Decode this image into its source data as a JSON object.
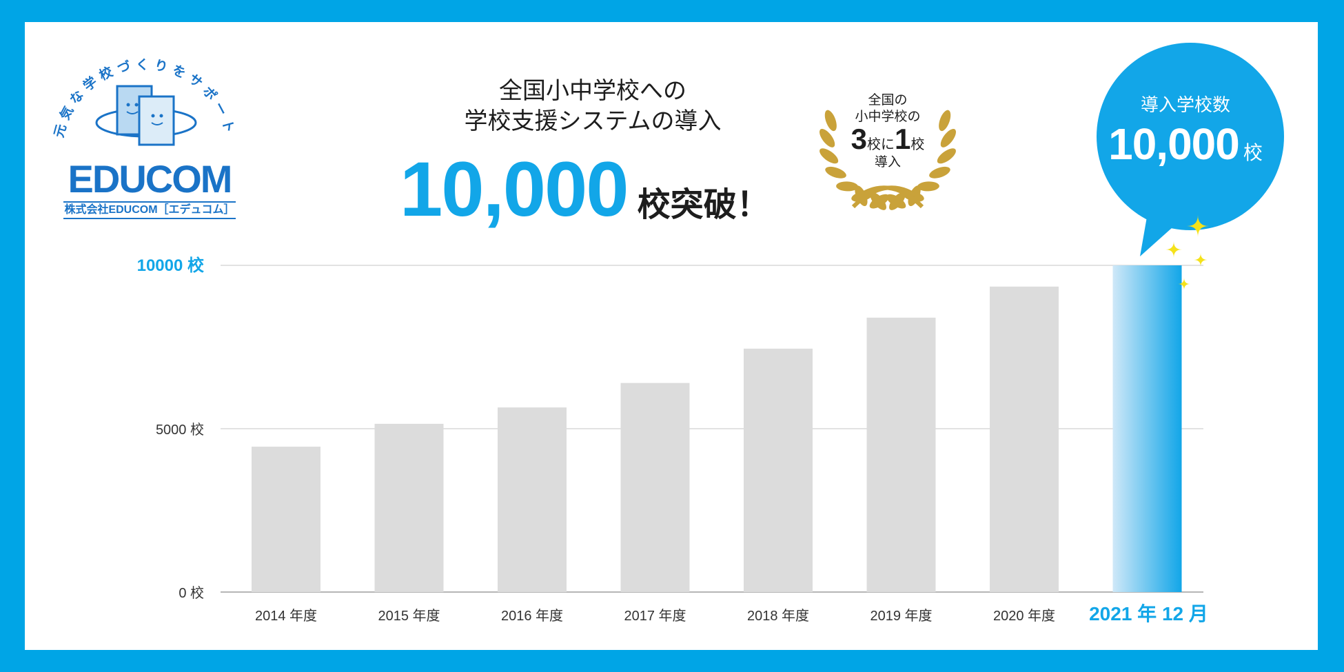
{
  "logo": {
    "tagline": "元気な学校づくりをサポート",
    "wordmark": "EDUCOM",
    "company": "株式会社EDUCOM［エデュコム］"
  },
  "headline": {
    "line1": "全国小中学校への",
    "line2": "学校支援システムの導入",
    "big_number": "10,000",
    "big_suffix": "校突破！"
  },
  "badge": {
    "line1": "全国の",
    "line2": "小中学校の",
    "num1": "3",
    "mid": "校に",
    "num2": "1",
    "end": "校",
    "line4": "導入"
  },
  "bubble": {
    "title": "導入学校数",
    "count": "10,000",
    "unit": "校"
  },
  "colors": {
    "accent": "#12a6e8",
    "border": "#00a5e6",
    "bar_gray": "#dcdcdc",
    "gold": "#c9a23a",
    "sparkle": "#f5e21a"
  },
  "chart_data": {
    "type": "bar",
    "categories": [
      "2014 年度",
      "2015 年度",
      "2016 年度",
      "2017 年度",
      "2018 年度",
      "2019 年度",
      "2020 年度",
      "2021 年 12 月"
    ],
    "values": [
      4450,
      5150,
      5650,
      6400,
      7450,
      8400,
      9350,
      10000
    ],
    "highlight_index": 7,
    "ylim": [
      0,
      10000
    ],
    "yticks": [
      {
        "value": 0,
        "label": "0 校"
      },
      {
        "value": 5000,
        "label": "5000 校"
      },
      {
        "value": 10000,
        "label": "10000 校"
      }
    ],
    "grid": true
  }
}
